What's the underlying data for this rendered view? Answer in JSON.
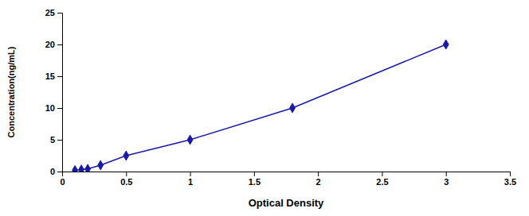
{
  "chart_data": {
    "type": "line",
    "x": [
      0.1,
      0.15,
      0.2,
      0.3,
      0.5,
      1.0,
      1.8,
      3.0
    ],
    "values": [
      0.2,
      0.3,
      0.4,
      1.0,
      2.5,
      5.0,
      10.0,
      20.0
    ],
    "color": "#1a1aaa",
    "marker": "diamond",
    "xlabel": "Optical Density",
    "ylabel": "Concentration(ng/mL)",
    "xlim": [
      0,
      3.5
    ],
    "ylim": [
      0,
      25
    ],
    "xticks": [
      0,
      0.5,
      1,
      1.5,
      2,
      2.5,
      3,
      3.5
    ],
    "yticks": [
      0,
      5,
      10,
      15,
      20,
      25
    ],
    "grid": false
  }
}
